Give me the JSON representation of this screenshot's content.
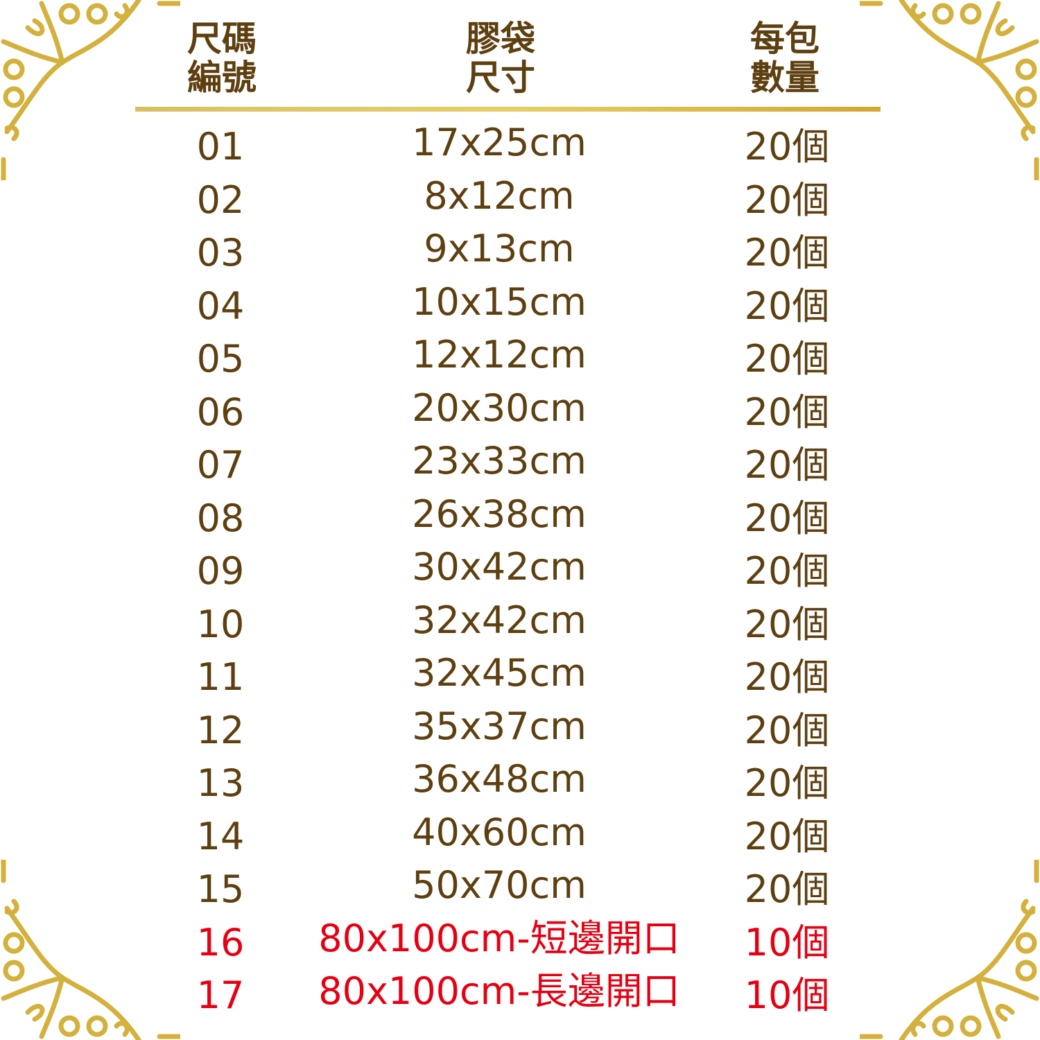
{
  "colors": {
    "text": "#5e3f10",
    "highlight": "#e60012",
    "gold": "#d4b84a"
  },
  "decoration": "gold-filigree-corners",
  "headers": {
    "code": "尺碼\n編號",
    "code_l1": "尺碼",
    "code_l2": "編號",
    "size_l1": "膠袋",
    "size_l2": "尺寸",
    "qty_l1": "每包",
    "qty_l2": "數量"
  },
  "rows": [
    {
      "code": "01",
      "size": "17x25cm",
      "qty": "20個"
    },
    {
      "code": "02",
      "size": "8x12cm",
      "qty": "20個"
    },
    {
      "code": "03",
      "size": "9x13cm",
      "qty": "20個"
    },
    {
      "code": "04",
      "size": "10x15cm",
      "qty": "20個"
    },
    {
      "code": "05",
      "size": "12x12cm",
      "qty": "20個"
    },
    {
      "code": "06",
      "size": "20x30cm",
      "qty": "20個"
    },
    {
      "code": "07",
      "size": "23x33cm",
      "qty": "20個"
    },
    {
      "code": "08",
      "size": "26x38cm",
      "qty": "20個"
    },
    {
      "code": "09",
      "size": "30x42cm",
      "qty": "20個"
    },
    {
      "code": "10",
      "size": "32x42cm",
      "qty": "20個"
    },
    {
      "code": "11",
      "size": "32x45cm",
      "qty": "20個"
    },
    {
      "code": "12",
      "size": "35x37cm",
      "qty": "20個"
    },
    {
      "code": "13",
      "size": "36x48cm",
      "qty": "20個"
    },
    {
      "code": "14",
      "size": "40x60cm",
      "qty": "20個"
    },
    {
      "code": "15",
      "size": "50x70cm",
      "qty": "20個"
    },
    {
      "code": "16",
      "size": "80x100cm-短邊開口",
      "qty": "10個",
      "highlight": true
    },
    {
      "code": "17",
      "size": "80x100cm-長邊開口",
      "qty": "10個",
      "highlight": true
    }
  ]
}
